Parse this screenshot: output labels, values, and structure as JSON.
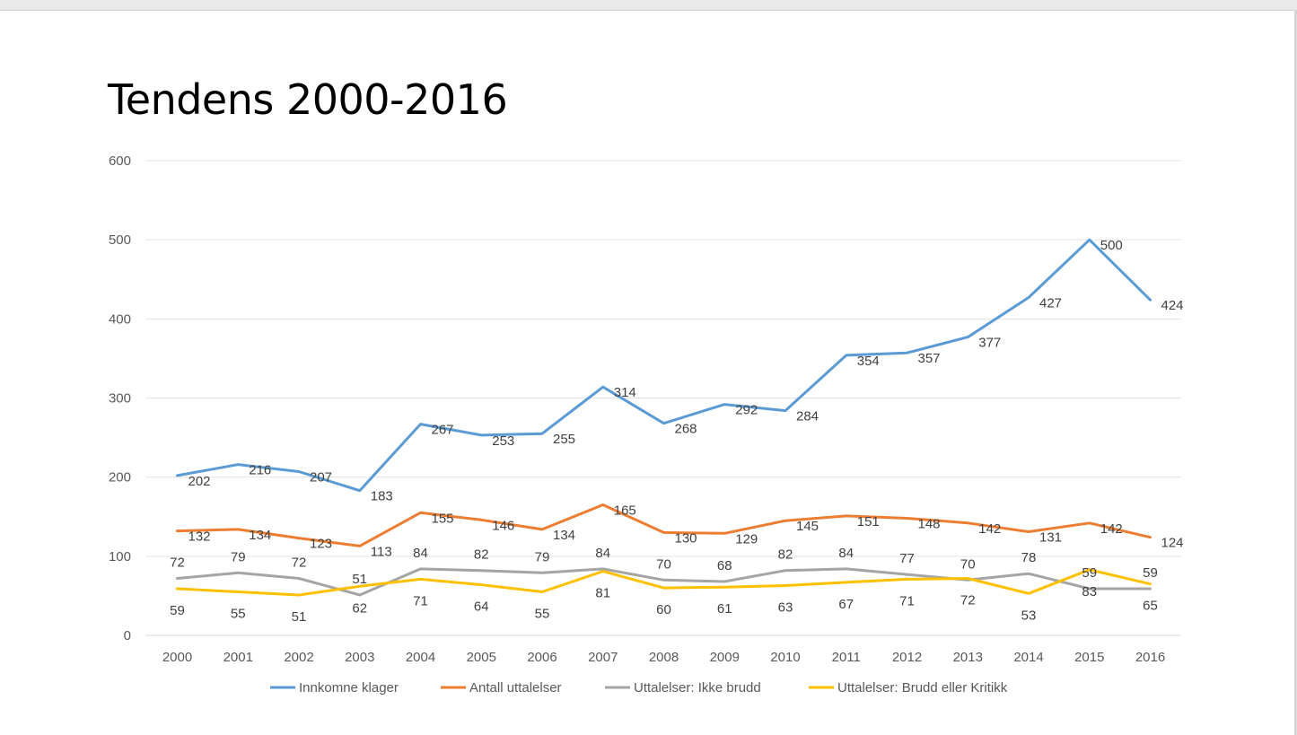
{
  "chart_data": {
    "type": "line",
    "title": "Tendens 2000-2016",
    "xlabel": "",
    "ylabel": "",
    "categories": [
      "2000",
      "2001",
      "2002",
      "2003",
      "2004",
      "2005",
      "2006",
      "2007",
      "2008",
      "2009",
      "2010",
      "2011",
      "2012",
      "2013",
      "2014",
      "2015",
      "2016"
    ],
    "ylim": [
      0,
      600
    ],
    "yticks": [
      0,
      100,
      200,
      300,
      400,
      500,
      600
    ],
    "grid": true,
    "legend_position": "bottom",
    "series": [
      {
        "name": "Innkomne klager",
        "color": "#5b9bd5",
        "values": [
          202,
          216,
          207,
          183,
          267,
          253,
          255,
          314,
          268,
          292,
          284,
          354,
          357,
          377,
          427,
          500,
          424
        ]
      },
      {
        "name": "Antall uttalelser",
        "color": "#ed7d31",
        "values": [
          132,
          134,
          123,
          113,
          155,
          146,
          134,
          165,
          130,
          129,
          145,
          151,
          148,
          142,
          131,
          142,
          124
        ]
      },
      {
        "name": "Uttalelser: Ikke brudd",
        "color": "#a5a5a5",
        "values": [
          72,
          79,
          72,
          51,
          84,
          82,
          79,
          84,
          70,
          68,
          82,
          84,
          77,
          70,
          78,
          59,
          59
        ]
      },
      {
        "name": "Uttalelser: Brudd eller Kritikk",
        "color": "#ffc000",
        "values": [
          59,
          55,
          51,
          62,
          71,
          64,
          55,
          81,
          60,
          61,
          63,
          67,
          71,
          72,
          53,
          83,
          65
        ]
      }
    ]
  }
}
